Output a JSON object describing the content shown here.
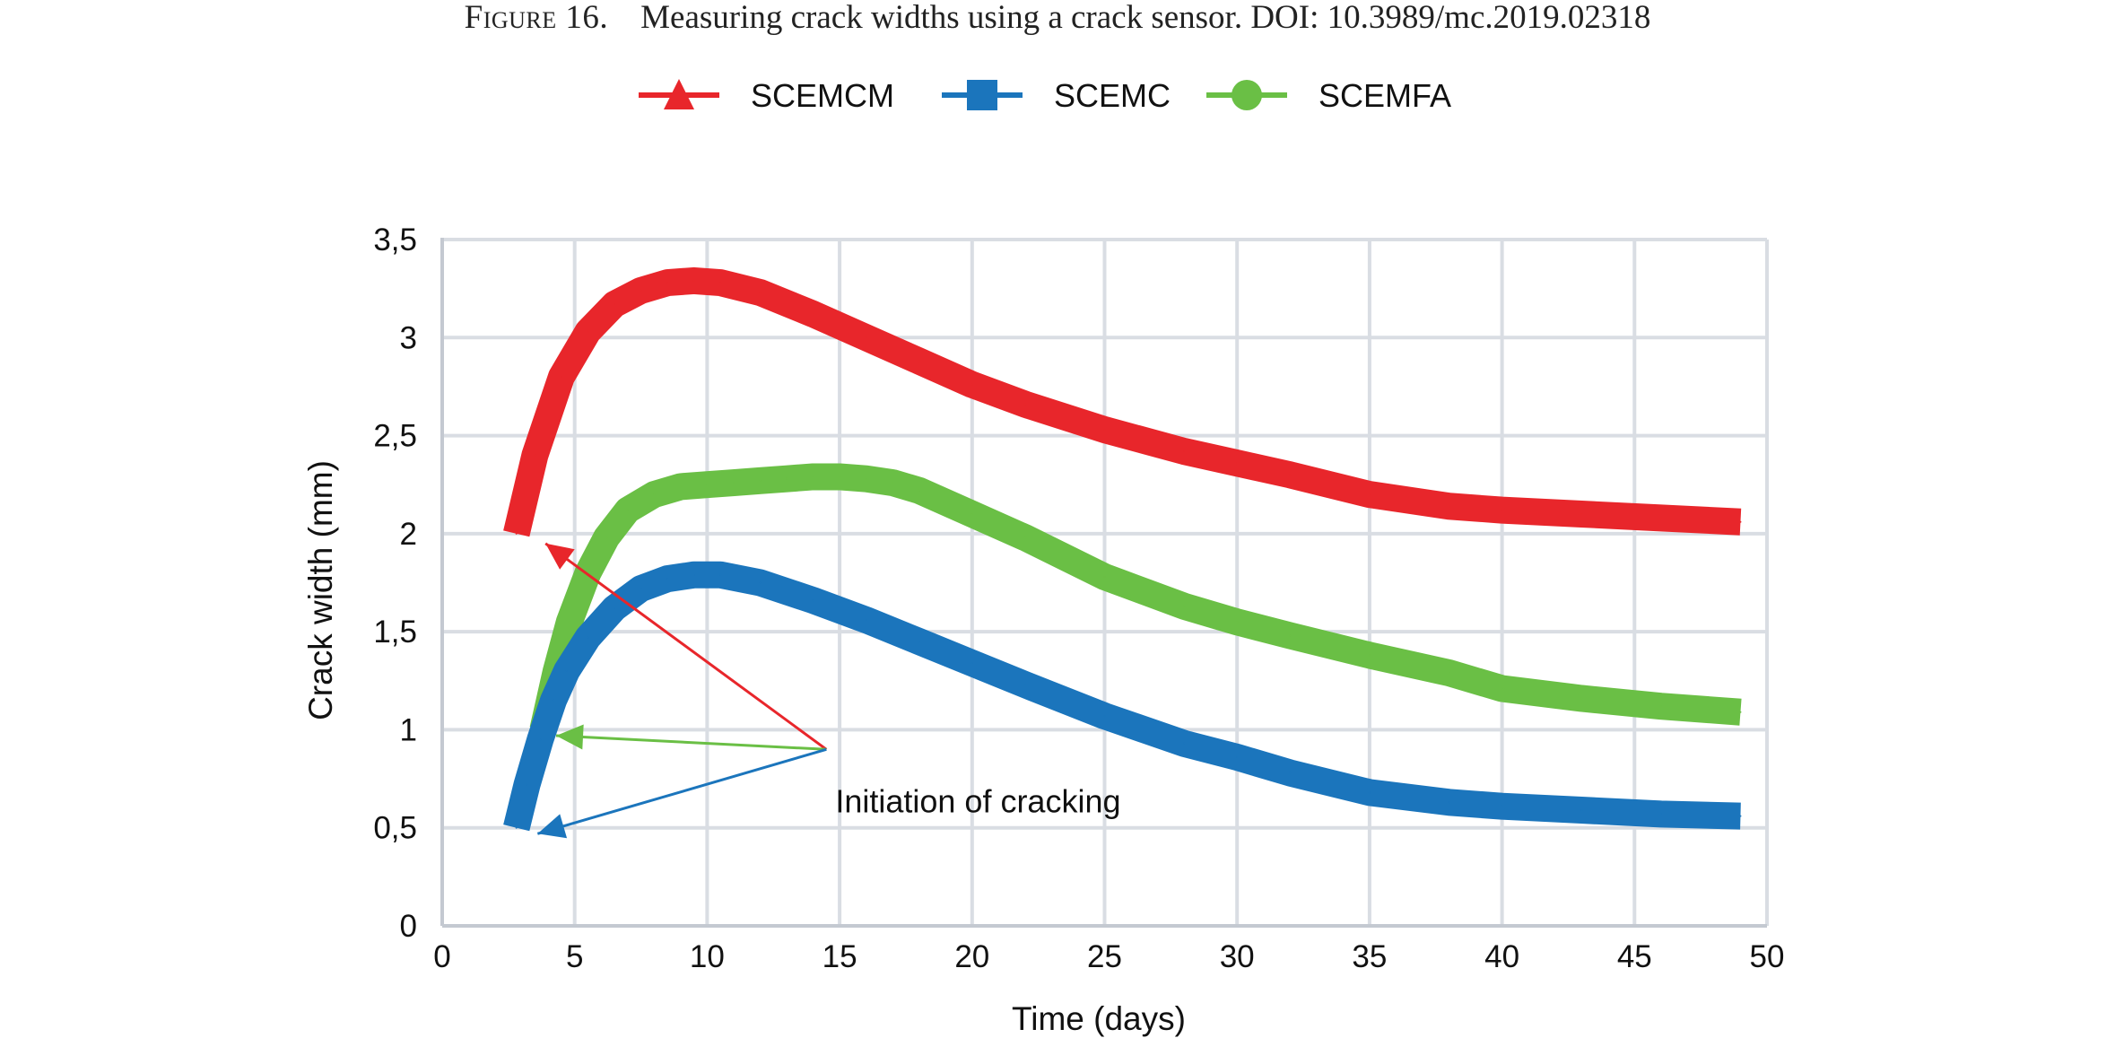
{
  "figure": {
    "label": "Figure 16.",
    "caption": "Measuring crack widths using a crack sensor. DOI: 10.3989/mc.2019.02318"
  },
  "chart_data": {
    "type": "line",
    "title": "",
    "xlabel": "Time (days)",
    "ylabel": "Crack width (mm)",
    "xlim": [
      0,
      50
    ],
    "ylim": [
      0,
      3.5
    ],
    "xticks": [
      0,
      5,
      10,
      15,
      20,
      25,
      30,
      35,
      40,
      45,
      50
    ],
    "xtick_labels": [
      "0",
      "5",
      "10",
      "15",
      "20",
      "25",
      "30",
      "35",
      "40",
      "45",
      "50"
    ],
    "yticks": [
      0,
      0.5,
      1,
      1.5,
      2,
      2.5,
      3,
      3.5
    ],
    "ytick_labels": [
      "0",
      "0,5",
      "1",
      "1,5",
      "2",
      "2,5",
      "3",
      "3,5"
    ],
    "grid": true,
    "legend_position": "top-center",
    "series": [
      {
        "name": "SCEMCM",
        "color": "#e8262b",
        "marker": "triangle",
        "x": [
          2.8,
          3.5,
          4.5,
          5.5,
          6.5,
          7.5,
          8.5,
          9.5,
          10.5,
          12,
          14,
          16,
          18,
          20,
          22,
          25,
          28,
          30,
          32,
          35,
          38,
          40,
          43,
          46,
          49
        ],
        "y": [
          2.0,
          2.4,
          2.8,
          3.03,
          3.17,
          3.24,
          3.28,
          3.29,
          3.28,
          3.23,
          3.12,
          3.0,
          2.88,
          2.76,
          2.66,
          2.53,
          2.42,
          2.36,
          2.3,
          2.2,
          2.14,
          2.12,
          2.1,
          2.08,
          2.06
        ]
      },
      {
        "name": "SCEMC",
        "color": "#1b75bc",
        "marker": "square",
        "x": [
          2.8,
          3.2,
          3.7,
          4.2,
          4.7,
          5.5,
          6.5,
          7.5,
          8.5,
          9.5,
          10.5,
          12,
          14,
          16,
          18,
          20,
          22,
          25,
          28,
          30,
          32,
          35,
          38,
          40,
          43,
          46,
          49
        ],
        "y": [
          0.5,
          0.72,
          0.95,
          1.15,
          1.3,
          1.47,
          1.62,
          1.72,
          1.77,
          1.79,
          1.79,
          1.75,
          1.66,
          1.56,
          1.45,
          1.34,
          1.23,
          1.07,
          0.93,
          0.86,
          0.78,
          0.68,
          0.63,
          0.61,
          0.59,
          0.57,
          0.56
        ]
      },
      {
        "name": "SCEMFA",
        "color": "#6abf45",
        "marker": "circle",
        "x": [
          3.8,
          4.3,
          4.8,
          5.5,
          6.2,
          7,
          8,
          9,
          10,
          11,
          12,
          13,
          14,
          15,
          16,
          17,
          18,
          20,
          22,
          25,
          28,
          30,
          32,
          35,
          38,
          40,
          43,
          46,
          49
        ],
        "y": [
          1.0,
          1.3,
          1.55,
          1.8,
          1.98,
          2.12,
          2.2,
          2.24,
          2.25,
          2.26,
          2.27,
          2.28,
          2.29,
          2.29,
          2.28,
          2.26,
          2.22,
          2.1,
          1.98,
          1.78,
          1.63,
          1.55,
          1.48,
          1.38,
          1.29,
          1.21,
          1.16,
          1.12,
          1.09
        ]
      }
    ],
    "annotations": [
      {
        "text": "Initiation of cracking",
        "anchor": [
          14.5,
          0.9
        ],
        "arrows": [
          {
            "to": [
              3.9,
              1.95
            ],
            "color": "#e8262b"
          },
          {
            "to": [
              4.3,
              0.97
            ],
            "color": "#6abf45"
          },
          {
            "to": [
              3.6,
              0.47
            ],
            "color": "#1b75bc"
          }
        ]
      }
    ]
  }
}
